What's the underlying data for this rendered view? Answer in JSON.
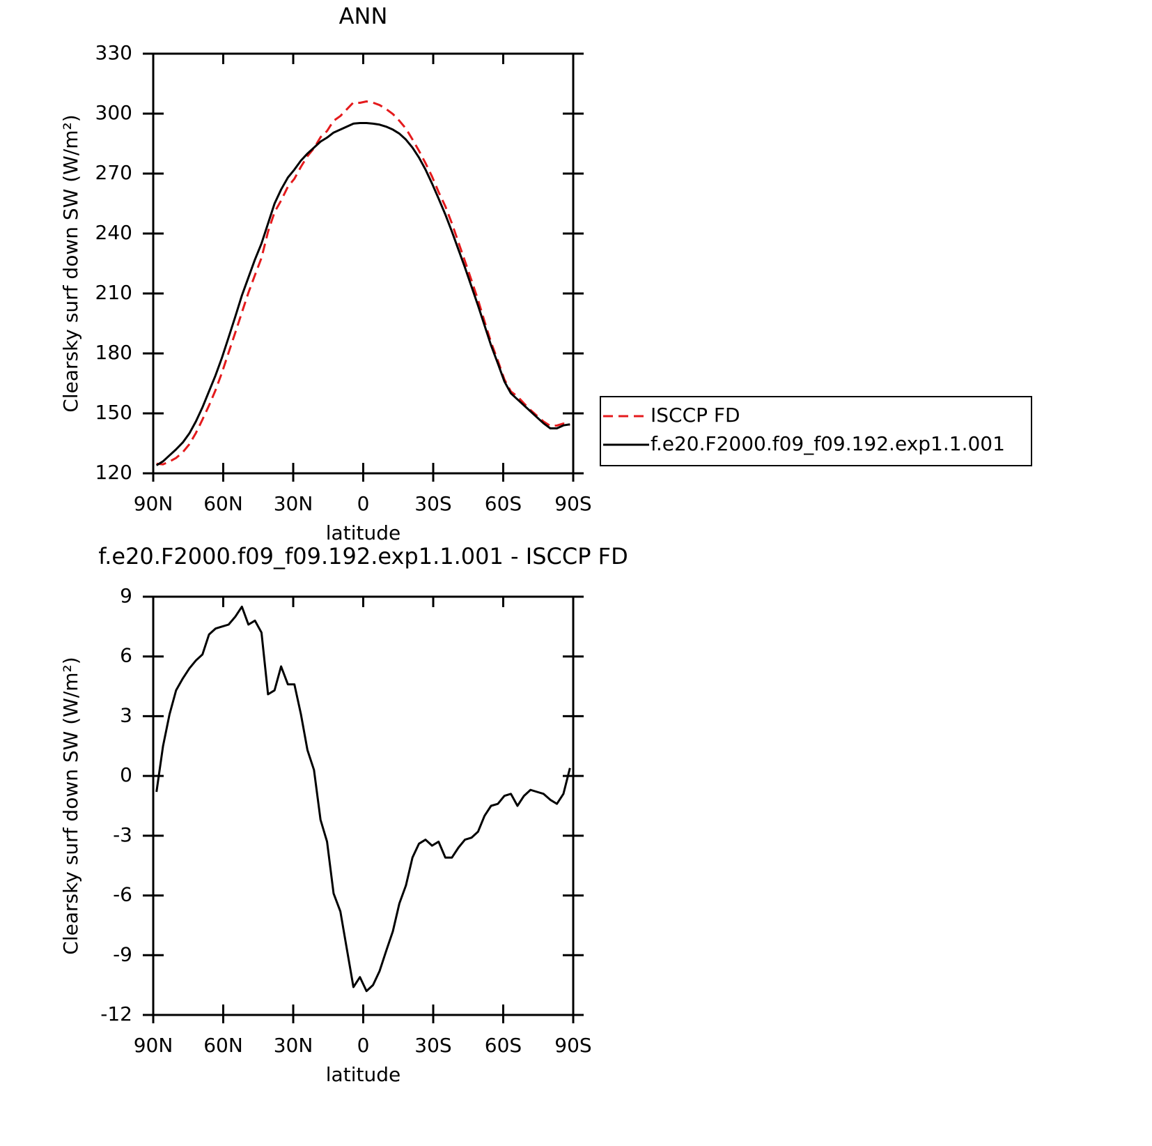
{
  "chart_data": [
    {
      "type": "line",
      "title": "ANN",
      "x_label": "latitude",
      "y_label": "Clearsky surf down SW (W/m²)",
      "x": [
        88.6,
        85.8,
        83.0,
        80.2,
        77.3,
        74.5,
        71.7,
        68.9,
        66.1,
        63.3,
        60.5,
        57.7,
        54.8,
        52.0,
        49.2,
        46.4,
        43.6,
        40.8,
        38.0,
        35.2,
        32.3,
        29.5,
        26.7,
        23.9,
        21.1,
        18.3,
        15.5,
        12.7,
        9.8,
        7.0,
        4.2,
        1.4,
        -1.4,
        -4.2,
        -7.0,
        -9.8,
        -12.7,
        -15.5,
        -18.3,
        -21.1,
        -23.9,
        -26.7,
        -29.5,
        -32.3,
        -35.2,
        -38.0,
        -40.8,
        -43.6,
        -46.4,
        -49.2,
        -52.0,
        -54.8,
        -57.7,
        -60.5,
        -63.3,
        -66.1,
        -68.9,
        -71.7,
        -74.5,
        -77.3,
        -80.2,
        -83.0,
        -85.8,
        -88.6
      ],
      "xlim": [
        90,
        -90
      ],
      "xticks": [
        {
          "value": 90,
          "label": "90N"
        },
        {
          "value": 60,
          "label": "60N"
        },
        {
          "value": 30,
          "label": "30N"
        },
        0,
        {
          "value": -30,
          "label": "30S"
        },
        {
          "value": -60,
          "label": "60S"
        },
        {
          "value": -90,
          "label": "90S"
        }
      ],
      "ylim": [
        120,
        330
      ],
      "yticks": [
        120,
        150,
        180,
        210,
        240,
        270,
        300,
        330
      ],
      "legend": "right",
      "series": [
        {
          "name": "ISCCP FD",
          "color": "#e41a1c",
          "dash": true,
          "values": [
            124.8,
            124.5,
            125.9,
            127.7,
            130.6,
            134.6,
            140.2,
            146.9,
            153.9,
            161.6,
            170.5,
            180.4,
            190.5,
            200.5,
            210.4,
            219.2,
            227.8,
            240.9,
            250.7,
            256.5,
            263.4,
            267.4,
            273.4,
            278.7,
            282.7,
            288.2,
            291.3,
            296.4,
            298.8,
            302.2,
            305.6,
            305.4,
            306.1,
            305.5,
            304.3,
            302.3,
            299.8,
            296.4,
            292.5,
            287.1,
            281.4,
            275.2,
            268.5,
            260.8,
            253.6,
            245.1,
            235.6,
            226.2,
            216.6,
            206.8,
            196,
            185.5,
            176.4,
            167,
            160.9,
            158.5,
            155,
            151.7,
            148.8,
            145.9,
            143.7,
            143.9,
            144.9,
            144.1
          ]
        },
        {
          "name": "f.e20.F2000.f09_f09.192.exp1.1.001",
          "color": "#000000",
          "dash": false,
          "values": [
            124,
            126,
            129,
            132,
            135.5,
            140,
            146,
            153,
            161,
            169,
            178,
            188,
            198.5,
            209,
            218,
            227,
            235,
            245,
            255,
            262,
            268,
            272,
            276.5,
            280,
            283,
            286,
            288,
            290.5,
            292,
            293.5,
            295,
            295.3,
            295.3,
            295,
            294.5,
            293.5,
            292,
            290,
            287,
            283,
            278,
            272,
            265,
            257.5,
            249.5,
            241,
            232,
            223,
            213.5,
            204,
            194,
            184,
            175,
            166,
            160,
            157,
            154,
            151,
            148,
            145,
            142.5,
            142.5,
            144,
            144.5
          ]
        }
      ]
    },
    {
      "type": "line",
      "title": "f.e20.F2000.f09_f09.192.exp1.1.001 - ISCCP FD",
      "x_label": "latitude",
      "y_label": "Clearsky surf down SW (W/m²)",
      "x": [
        88.6,
        85.8,
        83.0,
        80.2,
        77.3,
        74.5,
        71.7,
        68.9,
        66.1,
        63.3,
        60.5,
        57.7,
        54.8,
        52.0,
        49.2,
        46.4,
        43.6,
        40.8,
        38.0,
        35.2,
        32.3,
        29.5,
        26.7,
        23.9,
        21.1,
        18.3,
        15.5,
        12.7,
        9.8,
        7.0,
        4.2,
        1.4,
        -1.4,
        -4.2,
        -7.0,
        -9.8,
        -12.7,
        -15.5,
        -18.3,
        -21.1,
        -23.9,
        -26.7,
        -29.5,
        -32.3,
        -35.2,
        -38.0,
        -40.8,
        -43.6,
        -46.4,
        -49.2,
        -52.0,
        -54.8,
        -57.7,
        -60.5,
        -63.3,
        -66.1,
        -68.9,
        -71.7,
        -74.5,
        -77.3,
        -80.2,
        -83.0,
        -85.8,
        -88.6
      ],
      "xlim": [
        90,
        -90
      ],
      "xticks": [
        {
          "value": 90,
          "label": "90N"
        },
        {
          "value": 60,
          "label": "60N"
        },
        {
          "value": 30,
          "label": "30N"
        },
        0,
        {
          "value": -30,
          "label": "30S"
        },
        {
          "value": -60,
          "label": "60S"
        },
        {
          "value": -90,
          "label": "90S"
        }
      ],
      "ylim": [
        -12,
        9
      ],
      "yticks": [
        -12,
        -9,
        -6,
        -3,
        0,
        3,
        6,
        9
      ],
      "series": [
        {
          "color": "#000000",
          "dash": false,
          "values": [
            -0.8,
            1.5,
            3.1,
            4.3,
            4.9,
            5.4,
            5.8,
            6.1,
            7.1,
            7.4,
            7.5,
            7.6,
            8.0,
            8.5,
            7.6,
            7.8,
            7.2,
            4.1,
            4.3,
            5.5,
            4.6,
            4.6,
            3.1,
            1.3,
            0.3,
            -2.2,
            -3.3,
            -5.9,
            -6.8,
            -8.7,
            -10.6,
            -10.1,
            -10.8,
            -10.5,
            -9.8,
            -8.8,
            -7.8,
            -6.4,
            -5.5,
            -4.1,
            -3.4,
            -3.2,
            -3.5,
            -3.3,
            -4.1,
            -4.1,
            -3.6,
            -3.2,
            -3.1,
            -2.8,
            -2.0,
            -1.5,
            -1.4,
            -1.0,
            -0.9,
            -1.5,
            -1.0,
            -0.7,
            -0.8,
            -0.9,
            -1.2,
            -1.4,
            -0.9,
            0.4
          ]
        }
      ]
    }
  ]
}
